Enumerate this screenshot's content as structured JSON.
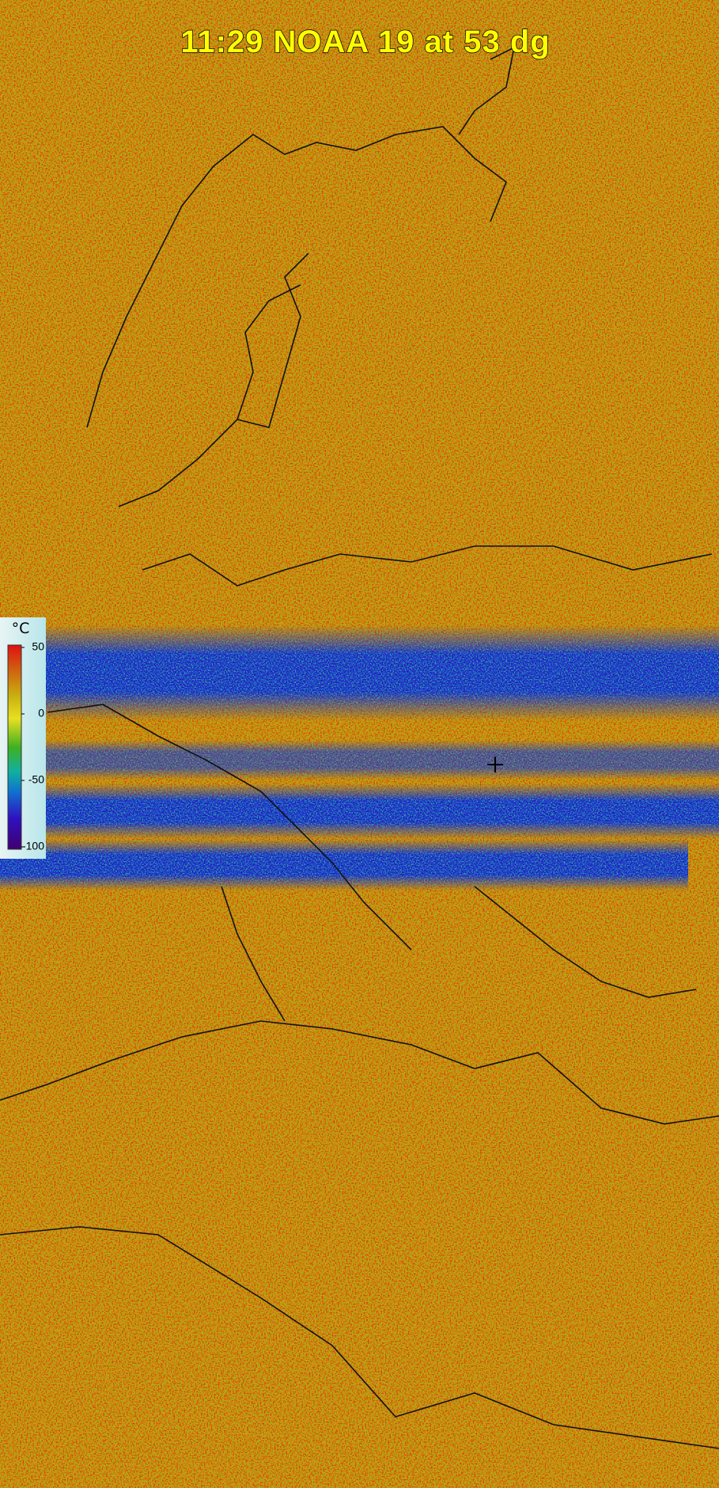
{
  "header": {
    "title": "11:29 NOAA 19 at 53 dg"
  },
  "legend": {
    "unit": "°C",
    "ticks": [
      50,
      0,
      -50,
      -100
    ]
  }
}
